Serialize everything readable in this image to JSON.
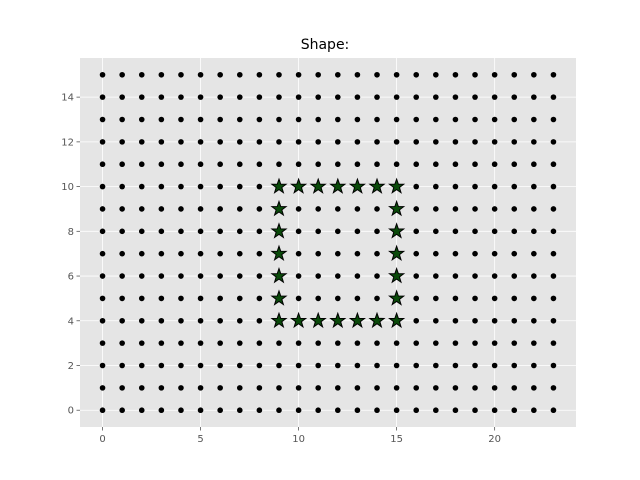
{
  "chart_data": {
    "type": "scatter",
    "title": "Shape:",
    "xlabel": "",
    "ylabel": "",
    "xlim": [
      -1.15,
      24.15
    ],
    "ylim": [
      -0.75,
      15.75
    ],
    "x_ticks": [
      0,
      5,
      10,
      15,
      20
    ],
    "y_ticks": [
      0,
      2,
      4,
      6,
      8,
      10,
      12,
      14
    ],
    "grid": true,
    "background_color": "#e5e5e5",
    "grid_color": "#ffffff",
    "grid_dots": {
      "x_range": [
        0,
        23
      ],
      "y_range": [
        0,
        15
      ],
      "color": "#000000",
      "marker": "circle"
    },
    "shape_points": {
      "marker": "star",
      "fill_color": "#0a4a0a",
      "edge_color": "#000000",
      "points": [
        [
          9,
          10
        ],
        [
          10,
          10
        ],
        [
          11,
          10
        ],
        [
          12,
          10
        ],
        [
          13,
          10
        ],
        [
          14,
          10
        ],
        [
          15,
          10
        ],
        [
          9,
          9
        ],
        [
          15,
          9
        ],
        [
          9,
          8
        ],
        [
          15,
          8
        ],
        [
          9,
          7
        ],
        [
          15,
          7
        ],
        [
          9,
          6
        ],
        [
          15,
          6
        ],
        [
          9,
          5
        ],
        [
          15,
          5
        ],
        [
          9,
          4
        ],
        [
          10,
          4
        ],
        [
          11,
          4
        ],
        [
          12,
          4
        ],
        [
          13,
          4
        ],
        [
          14,
          4
        ],
        [
          15,
          4
        ]
      ]
    }
  }
}
